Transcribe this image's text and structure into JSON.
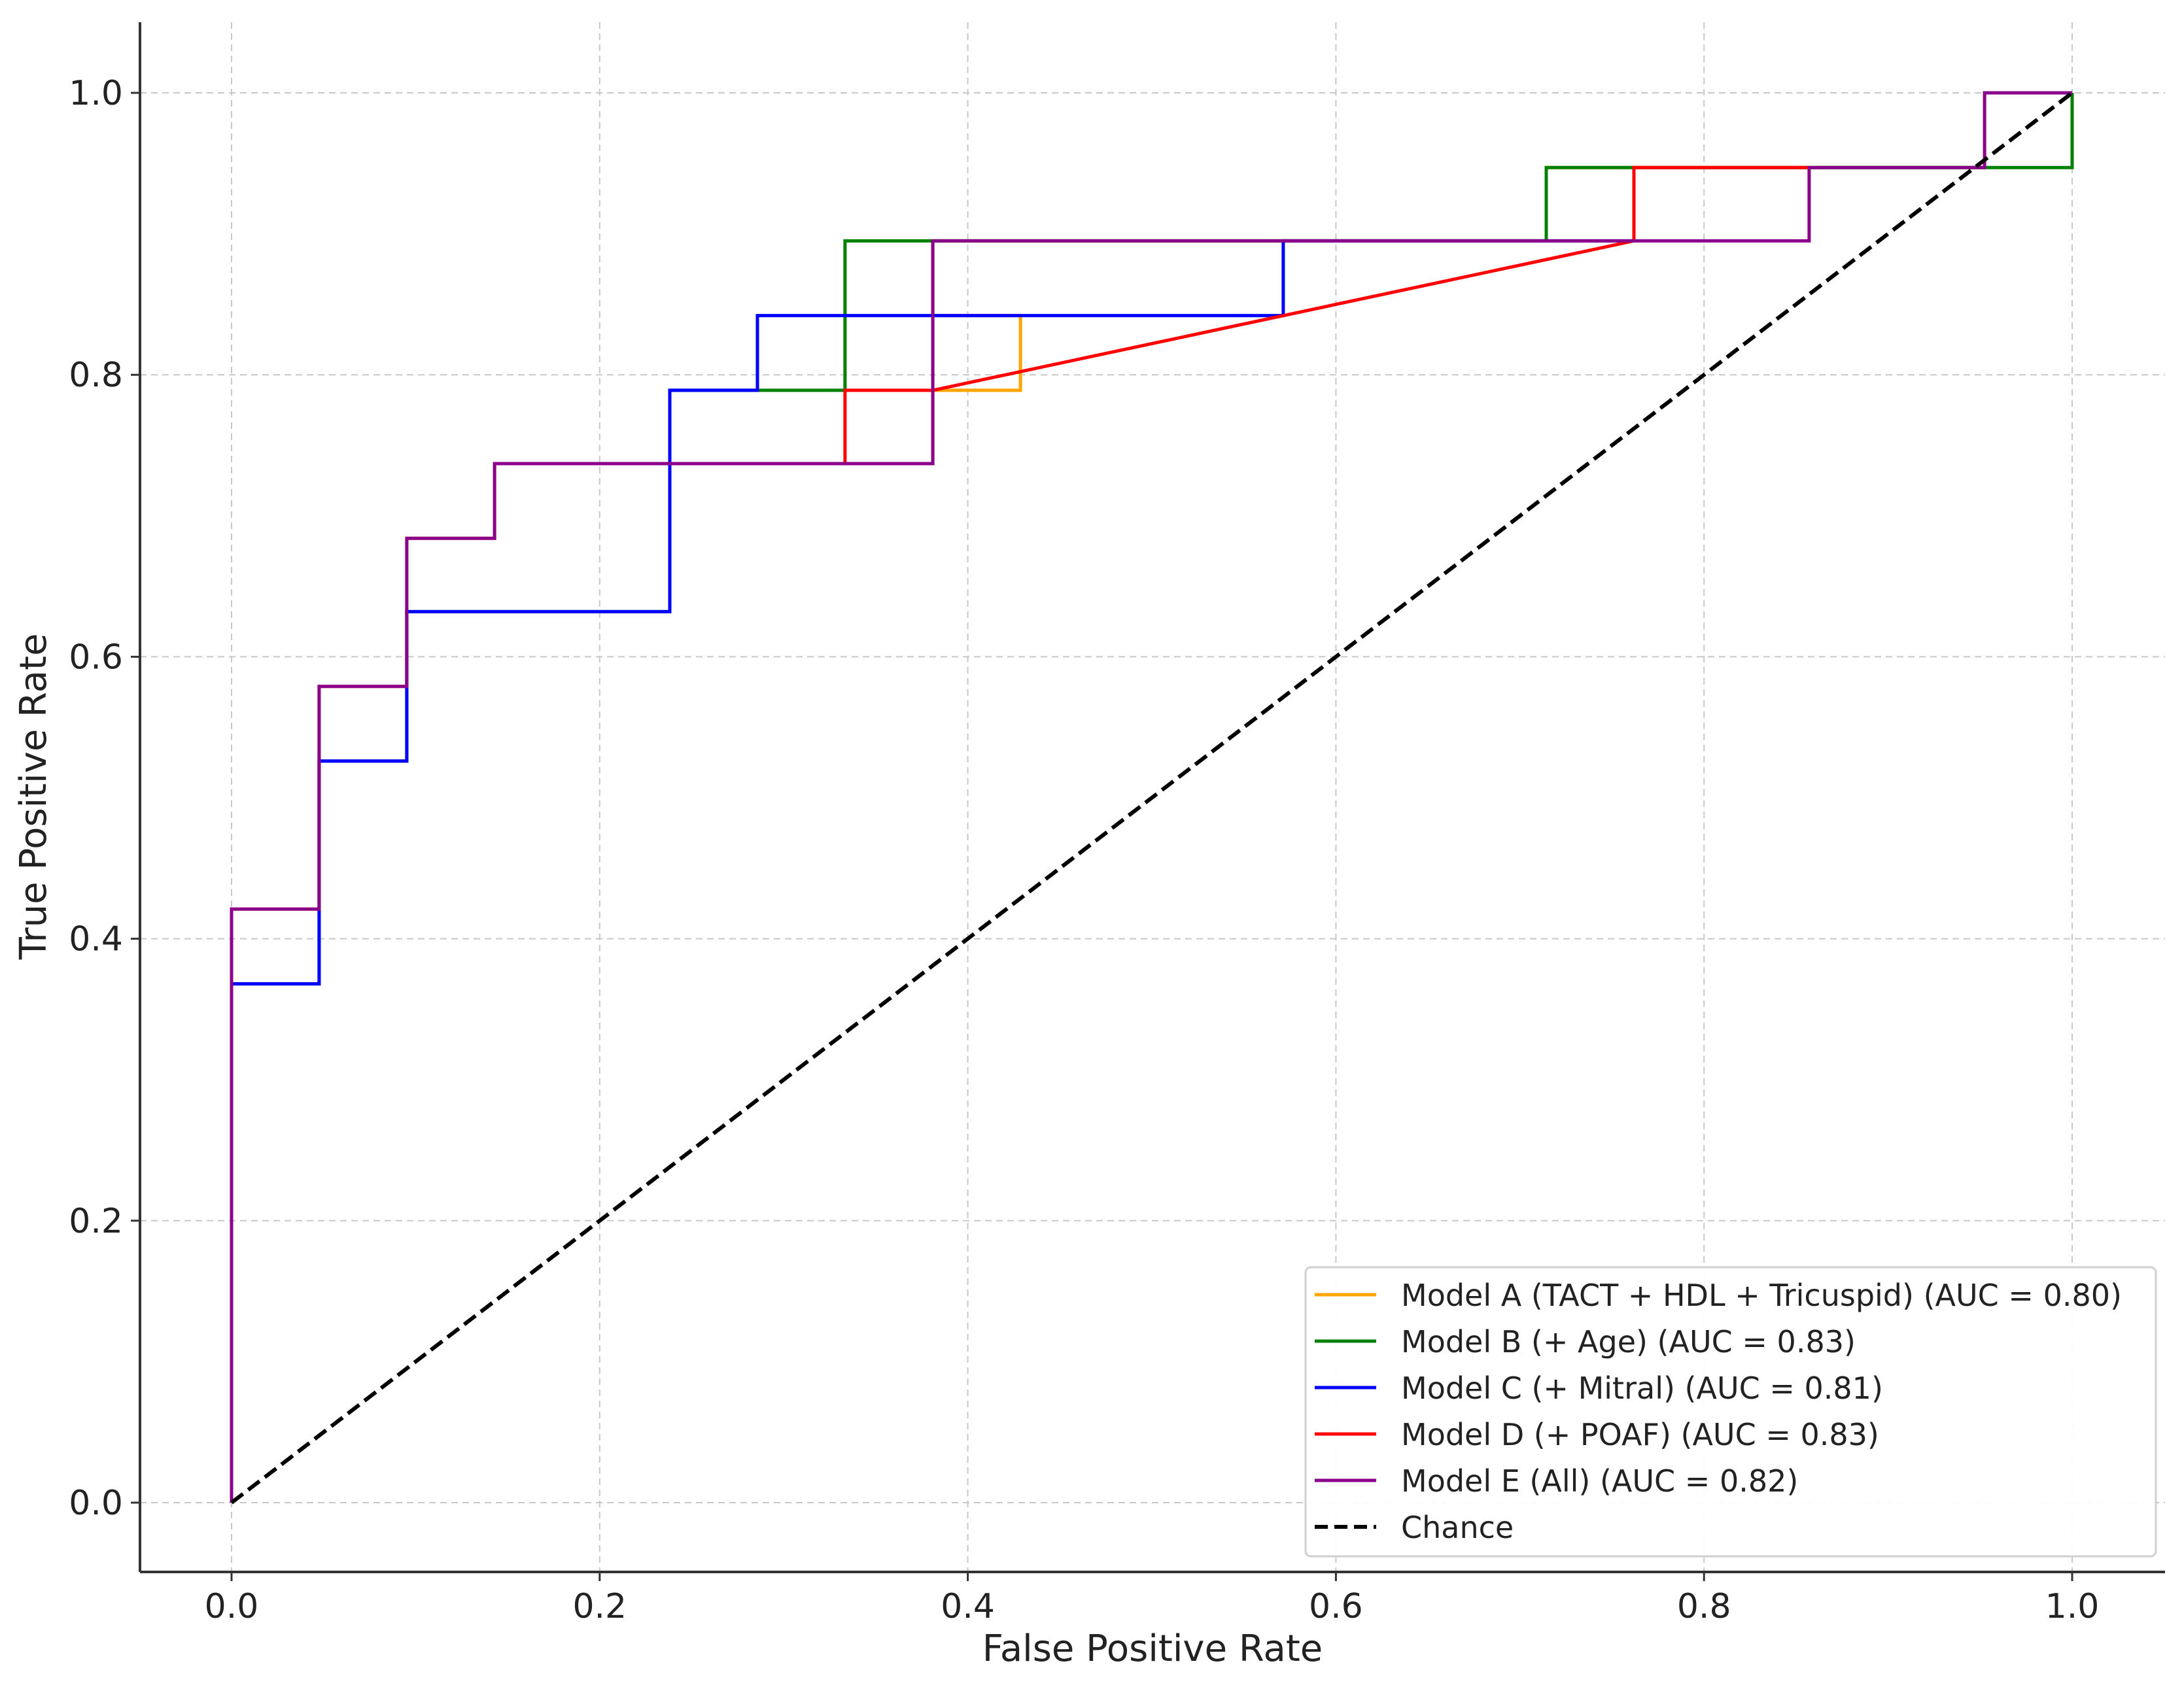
{
  "chart_data": {
    "type": "line",
    "title": "",
    "xlabel": "False Positive Rate",
    "ylabel": "True Positive Rate",
    "xlim": [
      -0.05,
      1.05
    ],
    "ylim": [
      -0.05,
      1.05
    ],
    "xticks": [
      0.0,
      0.2,
      0.4,
      0.6,
      0.8,
      1.0
    ],
    "yticks": [
      0.0,
      0.2,
      0.4,
      0.6,
      0.8,
      1.0
    ],
    "xtick_labels": [
      "0.0",
      "0.2",
      "0.4",
      "0.6",
      "0.8",
      "1.0"
    ],
    "ytick_labels": [
      "0.0",
      "0.2",
      "0.4",
      "0.6",
      "0.8",
      "1.0"
    ],
    "grid": true,
    "legend_position": "bottom-right",
    "series": [
      {
        "name": "Model A (TACT + HDL + Tricuspid) (AUC = 0.80)",
        "color": "#FFA500",
        "dash": "solid",
        "x": [
          0.0,
          0.0,
          0.0476,
          0.0476,
          0.0952,
          0.0952,
          0.1429,
          0.1429,
          0.381,
          0.381,
          0.4286,
          0.4286,
          0.381,
          0.381,
          0.7143,
          0.7143,
          0.9524,
          0.9524,
          1.0,
          1.0
        ],
        "y": [
          0.0,
          0.421,
          0.421,
          0.579,
          0.579,
          0.684,
          0.684,
          0.737,
          0.737,
          0.789,
          0.789,
          0.842,
          0.842,
          0.895,
          0.895,
          0.947,
          0.947,
          1.0,
          1.0,
          1.0
        ]
      },
      {
        "name": "Model B (+ Age) (AUC = 0.83)",
        "color": "#008000",
        "dash": "solid",
        "x": [
          0.0,
          0.0,
          0.0476,
          0.0476,
          0.0952,
          0.0952,
          0.2381,
          0.2381,
          0.3333,
          0.3333,
          0.7143,
          0.7143,
          1.0,
          1.0
        ],
        "y": [
          0.0,
          0.368,
          0.368,
          0.526,
          0.526,
          0.632,
          0.632,
          0.789,
          0.789,
          0.895,
          0.895,
          0.947,
          0.947,
          1.0
        ]
      },
      {
        "name": "Model C (+ Mitral) (AUC = 0.81)",
        "color": "#0000FF",
        "dash": "solid",
        "x": [
          0.0,
          0.0,
          0.0476,
          0.0476,
          0.0952,
          0.0952,
          0.2381,
          0.2381,
          0.2857,
          0.2857,
          0.5714,
          0.5714,
          0.7619
        ],
        "y": [
          0.0,
          0.368,
          0.368,
          0.526,
          0.526,
          0.632,
          0.632,
          0.789,
          0.789,
          0.842,
          0.842,
          0.895,
          0.895
        ]
      },
      {
        "name": "Model D (+ POAF) (AUC = 0.83)",
        "color": "#FF0000",
        "dash": "solid",
        "x": [
          0.3333,
          0.3333,
          0.381,
          0.7619,
          0.7619,
          0.8571
        ],
        "y": [
          0.737,
          0.789,
          0.789,
          0.895,
          0.947,
          0.947
        ]
      },
      {
        "name": "Model E (All) (AUC = 0.82)",
        "color": "#8B008B",
        "dash": "solid",
        "x": [
          0.0,
          0.0,
          0.0476,
          0.0476,
          0.0952,
          0.0952,
          0.1429,
          0.1429,
          0.381,
          0.381,
          0.8571,
          0.8571,
          0.9524,
          0.9524,
          1.0
        ],
        "y": [
          0.0,
          0.421,
          0.421,
          0.579,
          0.579,
          0.684,
          0.684,
          0.737,
          0.737,
          0.895,
          0.895,
          0.947,
          0.947,
          1.0,
          1.0
        ]
      },
      {
        "name": "Chance",
        "color": "#000000",
        "dash": "dashed",
        "x": [
          0.0,
          1.0
        ],
        "y": [
          0.0,
          1.0
        ]
      }
    ]
  }
}
